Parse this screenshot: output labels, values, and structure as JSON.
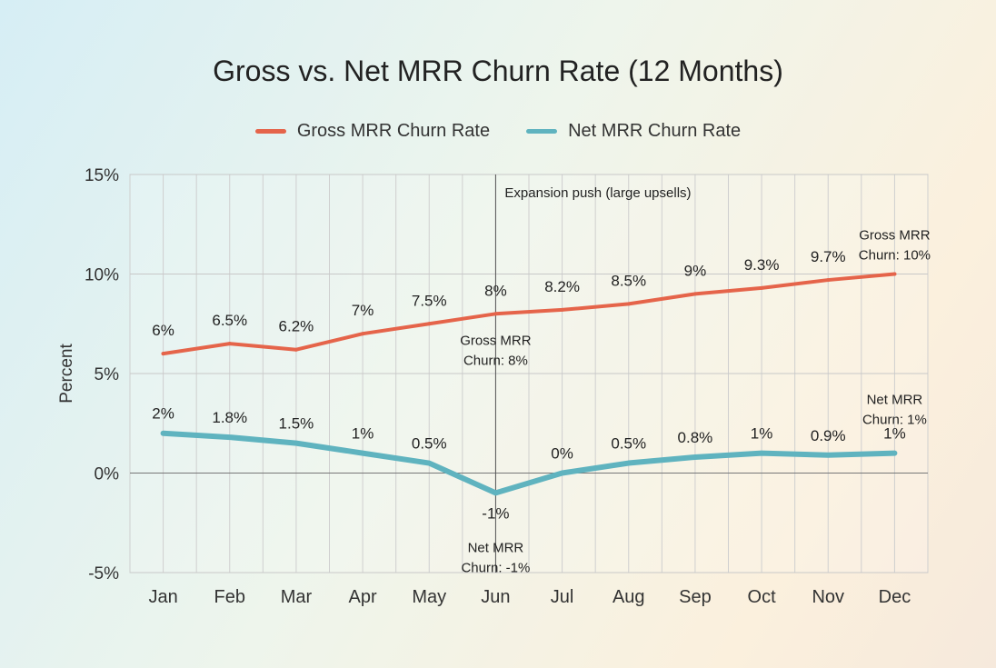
{
  "chart_data": {
    "type": "line",
    "title": "Gross vs. Net MRR Churn Rate (12 Months)",
    "xlabel": "",
    "ylabel": "Percent",
    "ylim": [
      -5,
      15
    ],
    "yticks": [
      -5,
      0,
      5,
      10,
      15
    ],
    "ytick_labels": [
      "-5%",
      "0%",
      "5%",
      "10%",
      "15%"
    ],
    "grid": true,
    "legend_position": "top-center",
    "categories": [
      "Jan",
      "Feb",
      "Mar",
      "Apr",
      "May",
      "Jun",
      "Jul",
      "Aug",
      "Sep",
      "Oct",
      "Nov",
      "Dec"
    ],
    "series": [
      {
        "name": "Gross MRR Churn Rate",
        "color": "#e5644a",
        "values": [
          6,
          6.5,
          6.2,
          7,
          7.5,
          8,
          8.2,
          8.5,
          9,
          9.3,
          9.7,
          10
        ],
        "labels": [
          "6%",
          "6.5%",
          "6.2%",
          "7%",
          "7.5%",
          "8%",
          "8.2%",
          "8.5%",
          "9%",
          "9.3%",
          "9.7%",
          ""
        ]
      },
      {
        "name": "Net MRR Churn Rate",
        "color": "#5fb3bf",
        "values": [
          2,
          1.8,
          1.5,
          1,
          0.5,
          -1,
          0,
          0.5,
          0.8,
          1,
          0.9,
          1
        ],
        "labels": [
          "2%",
          "1.8%",
          "1.5%",
          "1%",
          "0.5%",
          "-1%",
          "0%",
          "0.5%",
          "0.8%",
          "1%",
          "0.9%",
          "1%"
        ]
      }
    ],
    "annotations": [
      {
        "text": "Expansion push (large upsells)",
        "x": "Jun",
        "type": "vline"
      },
      {
        "lines": [
          "Gross MRR",
          "Churn: 8%"
        ],
        "x": "Jun",
        "y": 8
      },
      {
        "lines": [
          "Net MRR",
          "Churn: -1%"
        ],
        "x": "Jun",
        "y": -1
      },
      {
        "lines": [
          "Gross MRR",
          "Churn: 10%"
        ],
        "x": "Dec",
        "y": 10
      },
      {
        "lines": [
          "Net MRR",
          "Churn: 1%"
        ],
        "x": "Dec",
        "y": 1
      }
    ]
  }
}
